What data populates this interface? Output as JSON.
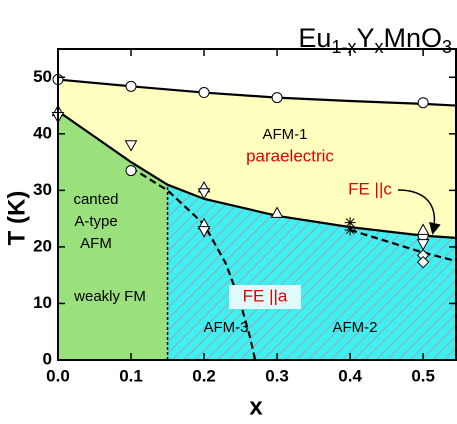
{
  "chart_data": {
    "type": "phase",
    "title_parts": [
      "Eu",
      "1-x",
      "Y",
      "x",
      "MnO",
      "3"
    ],
    "x_label": "x",
    "y_label": "T (K)",
    "xlim": [
      0,
      0.545
    ],
    "ylim": [
      0,
      55
    ],
    "xticks": [
      {
        "value": 0,
        "label": "0.0"
      },
      0.1,
      0.2,
      0.3,
      0.4,
      0.5
    ],
    "yticks": [
      0,
      10,
      20,
      30,
      40,
      50
    ],
    "regions": [
      {
        "color": "#ffffc0",
        "x": [
          0,
          0.1,
          0.2,
          0.3,
          0.4,
          0.5,
          0.545,
          0.545,
          0.5,
          0.4,
          0.3,
          0.2,
          0.15,
          0.1,
          0.05,
          0
        ],
        "y": [
          49.6,
          48.4,
          47.3,
          46.4,
          45.8,
          45.3,
          45,
          21.6,
          22,
          23.5,
          25.5,
          28.5,
          31,
          35,
          39.5,
          44
        ]
      },
      {
        "color": "#9ae07c",
        "x": [
          0,
          0.05,
          0.1,
          0.15,
          0.15,
          0
        ],
        "y": [
          44,
          39.5,
          35,
          31,
          0,
          0
        ]
      },
      {
        "color": "#3ef0f0",
        "hatch": true,
        "x": [
          0.15,
          0.2,
          0.3,
          0.4,
          0.5,
          0.545,
          0.545,
          0.15
        ],
        "y": [
          31,
          28.5,
          25.5,
          23.5,
          22,
          21.6,
          0,
          0
        ]
      }
    ],
    "boundaries": [
      {
        "style": "solid",
        "x": [
          0,
          0.1,
          0.2,
          0.3,
          0.4,
          0.5,
          0.545
        ],
        "y": [
          49.6,
          48.4,
          47.3,
          46.4,
          45.8,
          45.3,
          45
        ]
      },
      {
        "style": "solid",
        "x": [
          0,
          0.05,
          0.1,
          0.15,
          0.2,
          0.3,
          0.4,
          0.5,
          0.545
        ],
        "y": [
          44,
          39.5,
          35,
          31,
          28.5,
          25.5,
          23.5,
          22,
          21.6
        ]
      },
      {
        "style": "dashed",
        "x": [
          0.1,
          0.15,
          0.2,
          0.23,
          0.25,
          0.263,
          0.27
        ],
        "y": [
          34,
          30,
          24,
          17,
          10,
          4,
          0
        ]
      },
      {
        "style": "dashed",
        "x": [
          0.4,
          0.5,
          0.545
        ],
        "y": [
          23,
          19,
          17.5
        ]
      },
      {
        "style": "dashed-fine",
        "x": [
          0.15,
          0.15
        ],
        "y": [
          0,
          31
        ]
      }
    ],
    "series": [
      {
        "marker": "circle",
        "x": [
          0,
          0.1,
          0.2,
          0.3,
          0.5,
          0.1,
          0.5
        ],
        "y": [
          49.6,
          48.4,
          47.3,
          46.4,
          45.5,
          33.5,
          22
        ]
      },
      {
        "marker": "triangle-up",
        "x": [
          0,
          0.2,
          0.2,
          0.3,
          0.5
        ],
        "y": [
          44,
          30.5,
          24,
          26,
          23
        ]
      },
      {
        "marker": "triangle-down",
        "x": [
          0,
          0.1,
          0.2,
          0.2,
          0.5
        ],
        "y": [
          43,
          38,
          29.5,
          22.8,
          20.5
        ]
      },
      {
        "marker": "star",
        "x": [
          0.4,
          0.4
        ],
        "y": [
          24.3,
          23
        ]
      },
      {
        "marker": "diamond",
        "x": [
          0.5,
          0.5
        ],
        "y": [
          18.5,
          17.3
        ]
      }
    ],
    "annotations": [
      "AFM-1",
      "paraelectric",
      "canted",
      "A-type",
      "AFM",
      "weakly FM",
      "FE ||a",
      "AFM-3",
      "AFM-2",
      "FE ||c"
    ]
  }
}
